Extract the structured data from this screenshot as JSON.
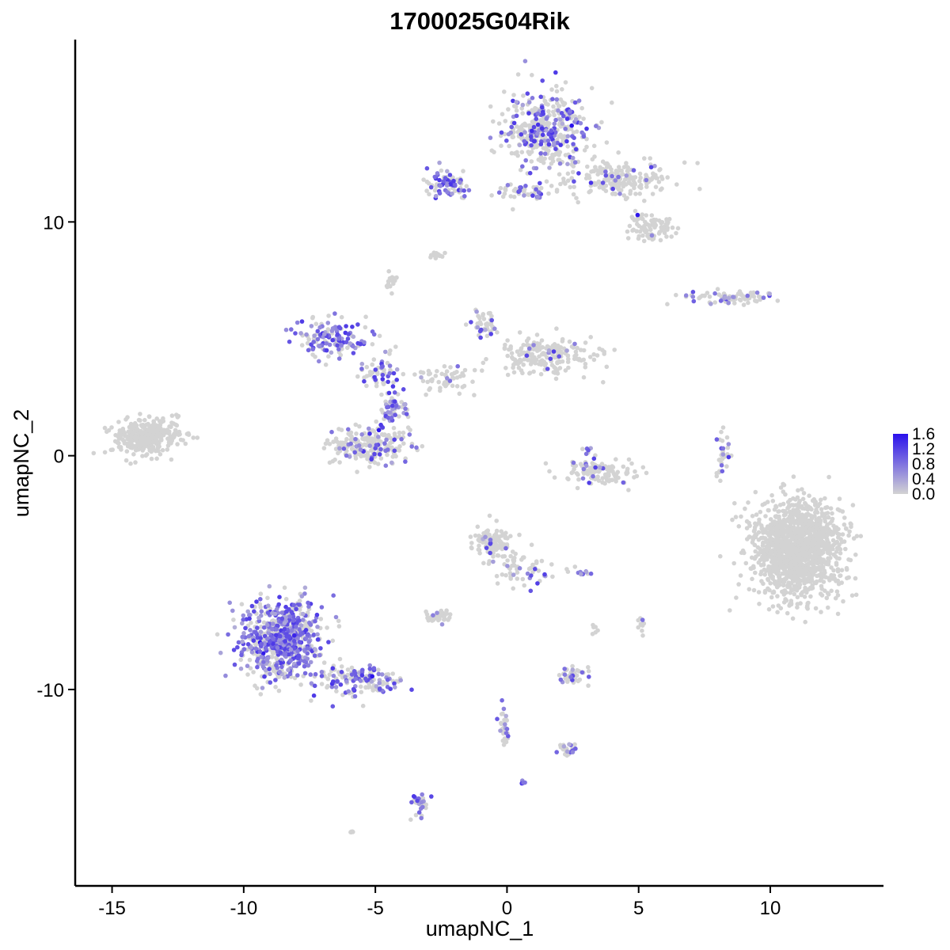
{
  "chart_data": {
    "type": "scatter",
    "title": "1700025G04Rik",
    "xlabel": "umapNC_1",
    "ylabel": "umapNC_2",
    "xlim": [
      -16.4,
      14.3
    ],
    "ylim": [
      -18.4,
      17.8
    ],
    "xticks": [
      -15,
      -10,
      -5,
      0,
      5,
      10
    ],
    "xtick_labels": [
      "-15",
      "-10",
      "-5",
      "0",
      "5",
      "10"
    ],
    "yticks": [
      -10,
      0,
      10
    ],
    "ytick_labels": [
      "-10",
      "0",
      "10"
    ],
    "grid": false,
    "legend": {
      "placement": "right",
      "type": "colorbar",
      "min": 0.0,
      "max": 1.6,
      "labels": [
        "1.6",
        "1.2",
        "0.8",
        "0.4",
        "0.0"
      ],
      "color_low": "#d3d3d3",
      "color_high": "#2a11ec"
    },
    "clusters": [
      {
        "name": "top-right-main",
        "cx": 1.5,
        "cy": 14.0,
        "sx": 1.1,
        "sy": 1.1,
        "n": 420,
        "expr": 0.32
      },
      {
        "name": "top-right-tail",
        "cx": 4.3,
        "cy": 11.8,
        "sx": 1.3,
        "sy": 0.5,
        "n": 200,
        "expr": 0.08
      },
      {
        "name": "top-right-lower",
        "cx": 5.5,
        "cy": 9.8,
        "sx": 0.6,
        "sy": 0.4,
        "n": 90,
        "expr": 0.05
      },
      {
        "name": "top-mid-arm",
        "cx": -2.3,
        "cy": 11.6,
        "sx": 0.55,
        "sy": 0.4,
        "n": 80,
        "expr": 0.55
      },
      {
        "name": "top-bridge",
        "cx": 0.7,
        "cy": 11.3,
        "sx": 0.8,
        "sy": 0.2,
        "n": 50,
        "expr": 0.35
      },
      {
        "name": "small-top-1",
        "cx": -2.7,
        "cy": 8.6,
        "sx": 0.2,
        "sy": 0.1,
        "n": 14,
        "expr": 0.0
      },
      {
        "name": "small-top-2",
        "cx": -4.4,
        "cy": 7.4,
        "sx": 0.2,
        "sy": 0.3,
        "n": 16,
        "expr": 0.0
      },
      {
        "name": "right-mid-strip",
        "cx": 8.5,
        "cy": 6.8,
        "sx": 1.0,
        "sy": 0.2,
        "n": 80,
        "expr": 0.3
      },
      {
        "name": "left-isolated",
        "cx": -13.7,
        "cy": 0.8,
        "sx": 0.9,
        "sy": 0.5,
        "n": 320,
        "expr": 0.0
      },
      {
        "name": "center-arm-top",
        "cx": -6.6,
        "cy": 5.0,
        "sx": 0.9,
        "sy": 0.5,
        "n": 140,
        "expr": 0.55
      },
      {
        "name": "center-arm-mid",
        "cx": -4.8,
        "cy": 3.7,
        "sx": 0.5,
        "sy": 0.5,
        "n": 60,
        "expr": 0.45
      },
      {
        "name": "center-body",
        "cx": -5.2,
        "cy": 0.5,
        "sx": 1.0,
        "sy": 0.6,
        "n": 230,
        "expr": 0.2
      },
      {
        "name": "center-stem",
        "cx": -4.3,
        "cy": 2.0,
        "sx": 0.35,
        "sy": 0.6,
        "n": 60,
        "expr": 0.5
      },
      {
        "name": "center-right-fan",
        "cx": 1.5,
        "cy": 4.3,
        "sx": 1.2,
        "sy": 0.5,
        "n": 200,
        "expr": 0.08
      },
      {
        "name": "center-right-top",
        "cx": -0.9,
        "cy": 5.6,
        "sx": 0.4,
        "sy": 0.4,
        "n": 40,
        "expr": 0.2
      },
      {
        "name": "center-link",
        "cx": -2.2,
        "cy": 3.3,
        "sx": 0.9,
        "sy": 0.4,
        "n": 60,
        "expr": 0.1
      },
      {
        "name": "mid-arc",
        "cx": 3.5,
        "cy": -0.7,
        "sx": 0.9,
        "sy": 0.3,
        "n": 110,
        "expr": 0.05
      },
      {
        "name": "right-thin",
        "cx": 8.2,
        "cy": 0.1,
        "sx": 0.2,
        "sy": 0.6,
        "n": 30,
        "expr": 0.15
      },
      {
        "name": "right-big",
        "cx": 11.0,
        "cy": -4.0,
        "sx": 1.1,
        "sy": 1.35,
        "n": 1400,
        "expr": 0.0
      },
      {
        "name": "bottom-left-main",
        "cx": -8.6,
        "cy": -7.9,
        "sx": 1.0,
        "sy": 1.1,
        "n": 700,
        "expr": 0.6
      },
      {
        "name": "bottom-left-tail",
        "cx": -5.5,
        "cy": -9.6,
        "sx": 1.0,
        "sy": 0.45,
        "n": 150,
        "expr": 0.4
      },
      {
        "name": "bottom-mid-top",
        "cx": -0.5,
        "cy": -3.7,
        "sx": 0.5,
        "sy": 0.4,
        "n": 120,
        "expr": 0.08
      },
      {
        "name": "bottom-mid-stream",
        "cx": 0.6,
        "cy": -4.8,
        "sx": 0.7,
        "sy": 0.5,
        "n": 60,
        "expr": 0.2
      },
      {
        "name": "bottom-mid-lower",
        "cx": -2.6,
        "cy": -6.9,
        "sx": 0.35,
        "sy": 0.2,
        "n": 40,
        "expr": 0.05
      },
      {
        "name": "small-bottom-1",
        "cx": 2.8,
        "cy": -5.0,
        "sx": 0.25,
        "sy": 0.1,
        "n": 12,
        "expr": 0.55
      },
      {
        "name": "small-bottom-2",
        "cx": 2.5,
        "cy": -9.4,
        "sx": 0.4,
        "sy": 0.25,
        "n": 40,
        "expr": 0.15
      },
      {
        "name": "small-bottom-3",
        "cx": 2.3,
        "cy": -12.5,
        "sx": 0.25,
        "sy": 0.15,
        "n": 25,
        "expr": 0.25
      },
      {
        "name": "small-bottom-4",
        "cx": -0.1,
        "cy": -11.5,
        "sx": 0.15,
        "sy": 0.5,
        "n": 30,
        "expr": 0.3
      },
      {
        "name": "small-bottom-5",
        "cx": -3.4,
        "cy": -14.9,
        "sx": 0.2,
        "sy": 0.35,
        "n": 30,
        "expr": 0.45
      },
      {
        "name": "small-bottom-6",
        "cx": 0.6,
        "cy": -14.0,
        "sx": 0.08,
        "sy": 0.05,
        "n": 6,
        "expr": 0.9
      },
      {
        "name": "small-bottom-7",
        "cx": -5.9,
        "cy": -16.1,
        "sx": 0.1,
        "sy": 0.05,
        "n": 5,
        "expr": 0.0
      },
      {
        "name": "small-right-8",
        "cx": 5.1,
        "cy": -7.2,
        "sx": 0.1,
        "sy": 0.25,
        "n": 10,
        "expr": 0.1
      },
      {
        "name": "small-mid-9",
        "cx": 3.3,
        "cy": -7.4,
        "sx": 0.1,
        "sy": 0.2,
        "n": 6,
        "expr": 0.0
      },
      {
        "name": "small-mid-10",
        "cx": 3.3,
        "cy": -0.1,
        "sx": 0.3,
        "sy": 0.4,
        "n": 20,
        "expr": 0.3
      }
    ]
  }
}
